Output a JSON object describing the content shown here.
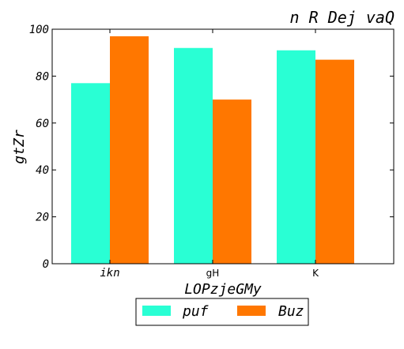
{
  "chart_data": {
    "type": "bar",
    "title": "n R Dej vaQ",
    "xlabel": "LOPzjeGMy",
    "ylabel": "gtZr",
    "categories": [
      "ikn",
      "gH",
      "K"
    ],
    "series": [
      {
        "name": "puf",
        "values": [
          77,
          92,
          91
        ],
        "color": "#29ffd4"
      },
      {
        "name": "Buz",
        "values": [
          97,
          70,
          87
        ],
        "color": "#ff7700"
      }
    ],
    "ylim": [
      0,
      100
    ],
    "yticks": [
      0,
      20,
      40,
      60,
      80,
      100
    ],
    "grid": false,
    "legend_position": "bottom-center"
  }
}
